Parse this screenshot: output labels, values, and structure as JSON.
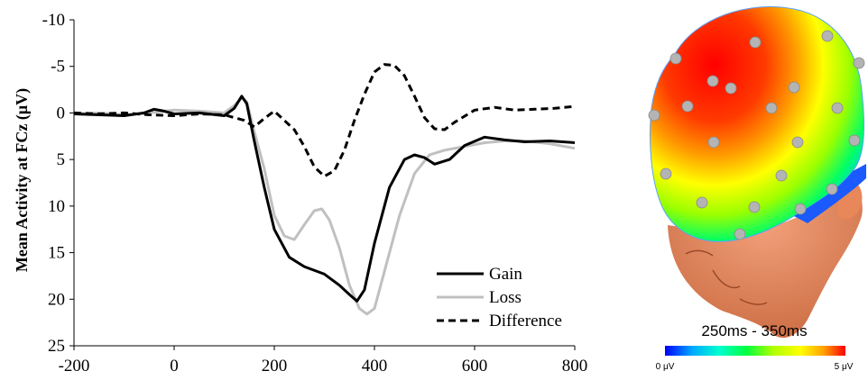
{
  "chart_data": [
    {
      "type": "line",
      "xlabel": "",
      "ylabel": "Mean Activity at FCz (μV)",
      "xlim": [
        -200,
        800
      ],
      "ylim": [
        -10,
        25
      ],
      "y_inverted": true,
      "x_ticks": [
        "-200",
        "0",
        "200",
        "400",
        "600",
        "800"
      ],
      "y_ticks": [
        "-10",
        "-5",
        "0",
        "5",
        "10",
        "15",
        "20",
        "25"
      ],
      "grid": false,
      "legend_position": "bottom-right",
      "series": [
        {
          "name": "Gain",
          "color": "#000000",
          "dash": "solid",
          "x": [
            -200,
            -150,
            -100,
            -60,
            -40,
            -20,
            0,
            50,
            100,
            120,
            135,
            145,
            160,
            180,
            200,
            230,
            260,
            300,
            330,
            350,
            365,
            380,
            400,
            430,
            460,
            480,
            500,
            520,
            550,
            580,
            620,
            660,
            700,
            750,
            800
          ],
          "y": [
            0.1,
            0.2,
            0.3,
            0.0,
            -0.4,
            -0.2,
            0.1,
            0.0,
            0.3,
            -0.5,
            -1.8,
            -1.0,
            3.0,
            8.0,
            12.5,
            15.5,
            16.5,
            17.3,
            18.5,
            19.5,
            20.2,
            19.0,
            14.0,
            8.0,
            5.0,
            4.5,
            4.8,
            5.5,
            5.0,
            3.5,
            2.6,
            2.9,
            3.1,
            3.0,
            3.2
          ]
        },
        {
          "name": "Loss",
          "color": "#c0c0c0",
          "dash": "solid",
          "x": [
            -200,
            -150,
            -100,
            -50,
            0,
            50,
            100,
            120,
            135,
            145,
            160,
            180,
            200,
            220,
            240,
            260,
            280,
            295,
            310,
            330,
            350,
            370,
            385,
            400,
            420,
            450,
            480,
            510,
            540,
            580,
            620,
            660,
            700,
            750,
            800
          ],
          "y": [
            0.1,
            0.0,
            0.2,
            0.0,
            -0.3,
            -0.2,
            0.0,
            -0.8,
            -1.6,
            -1.2,
            2.0,
            6.0,
            11.0,
            13.2,
            13.6,
            12.0,
            10.5,
            10.3,
            11.5,
            14.5,
            18.5,
            21.0,
            21.6,
            21.0,
            17.0,
            11.0,
            6.5,
            4.5,
            4.0,
            3.6,
            3.2,
            3.0,
            3.0,
            3.3,
            3.8
          ]
        },
        {
          "name": "Difference",
          "color": "#000000",
          "dash": "dashed",
          "x": [
            -200,
            -150,
            -100,
            -50,
            0,
            50,
            100,
            140,
            160,
            180,
            200,
            220,
            240,
            260,
            280,
            300,
            320,
            340,
            360,
            380,
            400,
            420,
            440,
            460,
            480,
            500,
            520,
            540,
            560,
            600,
            640,
            680,
            720,
            760,
            800
          ],
          "y": [
            0.0,
            0.1,
            0.0,
            0.2,
            0.3,
            0.1,
            0.2,
            0.8,
            1.5,
            0.6,
            -0.2,
            0.8,
            1.8,
            3.6,
            5.8,
            6.8,
            6.2,
            4.0,
            0.8,
            -2.0,
            -4.4,
            -5.2,
            -5.1,
            -4.0,
            -1.8,
            0.5,
            1.7,
            1.8,
            1.0,
            -0.3,
            -0.6,
            -0.3,
            -0.4,
            -0.5,
            -0.7
          ]
        }
      ]
    }
  ],
  "topomap": {
    "title": "250ms - 350ms",
    "colorbar_min_label": "0 μV",
    "colorbar_max_label": "5 μV",
    "colorbar_colors": [
      "#0000ff",
      "#00a8ff",
      "#00ffd0",
      "#00ff40",
      "#b0ff00",
      "#ffff00",
      "#ffa000",
      "#ff0000"
    ],
    "skin_color": "#e8875a",
    "electrode_color": "#b4b4b4"
  }
}
